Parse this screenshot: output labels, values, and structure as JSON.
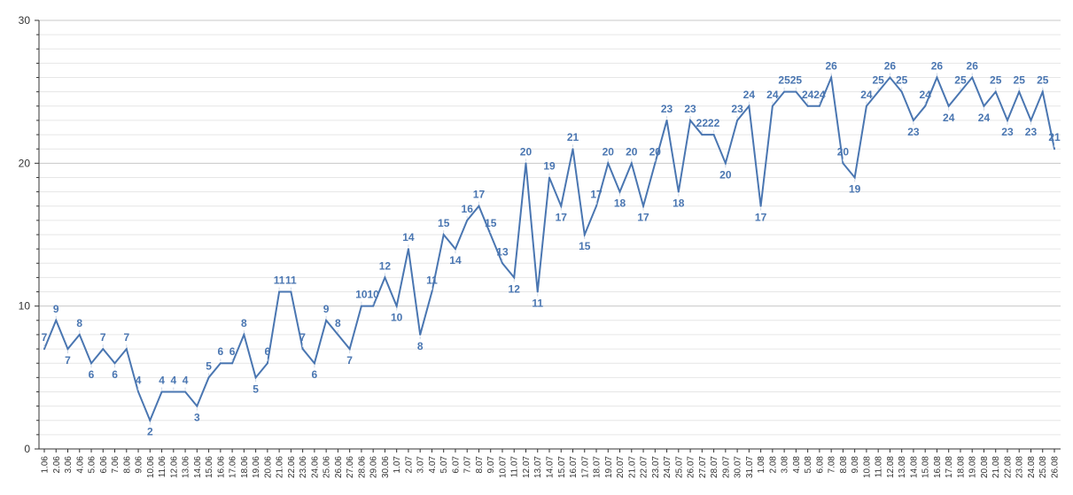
{
  "chart_data": {
    "type": "line",
    "title": "",
    "xlabel": "",
    "ylabel": "",
    "ylim": [
      0,
      30
    ],
    "yticks": [
      0,
      10,
      20,
      30
    ],
    "grid": true,
    "line_color": "#4a76b1",
    "label_color": "#4a76b1",
    "grid_color": "#d9d9d9",
    "categories": [
      "1.06",
      "2.06",
      "3.06",
      "4.06",
      "5.06",
      "6.06",
      "7.06",
      "8.06",
      "9.06",
      "10.06",
      "11.06",
      "12.06",
      "13.06",
      "14.06",
      "15.06",
      "16.06",
      "17.06",
      "18.06",
      "19.06",
      "20.06",
      "21.06",
      "22.06",
      "23.06",
      "24.06",
      "25.06",
      "26.06",
      "27.06",
      "28.06",
      "29.06",
      "30.06",
      "1.07",
      "2.07",
      "3.07",
      "4.07",
      "5.07",
      "6.07",
      "7.07",
      "8.07",
      "9.07",
      "10.07",
      "11.07",
      "12.07",
      "13.07",
      "14.07",
      "15.07",
      "16.07",
      "17.07",
      "18.07",
      "19.07",
      "20.07",
      "21.07",
      "22.07",
      "23.07",
      "24.07",
      "25.07",
      "26.07",
      "27.07",
      "28.07",
      "29.07",
      "30.07",
      "31.07",
      "1.08",
      "2.08",
      "3.08",
      "4.08",
      "5.08",
      "6.08",
      "7.08",
      "8.08",
      "9.08",
      "10.08",
      "11.08",
      "12.08",
      "13.08",
      "14.08",
      "15.08",
      "16.08",
      "17.08",
      "18.08",
      "19.08",
      "20.08",
      "21.08",
      "22.08",
      "23.08",
      "24.08",
      "25.08",
      "26.08"
    ],
    "values": [
      7,
      9,
      7,
      8,
      6,
      7,
      6,
      7,
      4,
      2,
      4,
      4,
      4,
      3,
      5,
      6,
      6,
      8,
      5,
      6,
      11,
      11,
      7,
      6,
      9,
      8,
      7,
      10,
      10,
      12,
      10,
      14,
      8,
      11,
      15,
      14,
      16,
      17,
      15,
      13,
      12,
      20,
      11,
      19,
      17,
      21,
      15,
      17,
      20,
      18,
      20,
      17,
      20,
      23,
      18,
      23,
      22,
      22,
      20,
      23,
      24,
      17,
      24,
      25,
      25,
      24,
      24,
      26,
      20,
      19,
      24,
      25,
      26,
      25,
      23,
      24,
      26,
      24,
      25,
      26,
      24,
      25,
      23,
      25,
      23,
      25,
      21
    ]
  }
}
